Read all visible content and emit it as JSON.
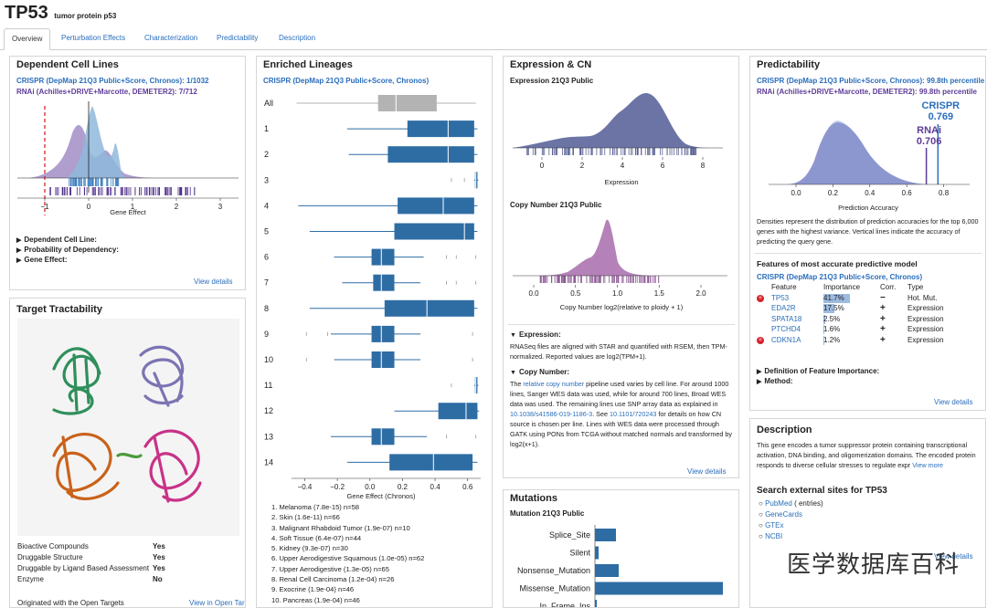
{
  "header": {
    "gene": "TP53",
    "description": "tumor protein p53"
  },
  "tabs": [
    "Overview",
    "Perturbation Effects",
    "Characterization",
    "Predictability",
    "Description"
  ],
  "dependent": {
    "title": "Dependent Cell Lines",
    "crispr": "CRISPR (DepMap 21Q3 Public+Score, Chronos): 1/1032",
    "rnai": "RNAi (Achilles+DRIVE+Marcotte, DEMETER2): 7/712",
    "chart_data": {
      "type": "area",
      "xlabel": "Gene Effect",
      "xticks": [
        "−1",
        "0",
        "1",
        "2",
        "3"
      ],
      "xtick_values": [
        -1,
        0,
        1,
        2,
        3
      ],
      "threshold": -1,
      "series": [
        {
          "name": "CRISPR",
          "color": "#8fb8dc"
        },
        {
          "name": "RNAi",
          "color": "#9b86c2"
        }
      ]
    },
    "details": [
      "Dependent Cell Line:",
      "Probability of Dependency:",
      "Gene Effect:"
    ],
    "view": "View details"
  },
  "tractability": {
    "title": "Target Tractability",
    "rows": [
      {
        "label": "Bioactive Compounds",
        "value": "Yes"
      },
      {
        "label": "Druggable Structure",
        "value": "Yes"
      },
      {
        "label": "Druggable by Ligand Based Assessment",
        "value": "Yes"
      },
      {
        "label": "Enzyme",
        "value": "No"
      }
    ],
    "footer": "Originated with the Open Targets",
    "footer_link": "View in Open Targets"
  },
  "lineages": {
    "title": "Enriched Lineages",
    "subtitle": "CRISPR (DepMap 21Q3 Public+Score, Chronos)",
    "chart_data": {
      "type": "box",
      "xlabel": "Gene Effect (Chronos)",
      "xticks": [
        "−0.4",
        "−0.2",
        "0.0",
        "0.2",
        "0.4",
        "0.6"
      ],
      "xtick_values": [
        -0.4,
        -0.2,
        0.0,
        0.2,
        0.4,
        0.6
      ],
      "xlim": [
        -0.47,
        0.68
      ],
      "categories": [
        "All",
        "1",
        "2",
        "3",
        "4",
        "5",
        "6",
        "7",
        "8",
        "9",
        "10",
        "11",
        "12",
        "13",
        "14"
      ],
      "boxes": [
        {
          "min": -0.45,
          "q1": 0.05,
          "median": 0.16,
          "q3": 0.41,
          "max": 0.65
        },
        {
          "min": -0.14,
          "q1": 0.23,
          "median": 0.48,
          "q3": 0.64,
          "max": 0.66
        },
        {
          "min": -0.13,
          "q1": 0.11,
          "median": 0.48,
          "q3": 0.64,
          "max": 0.66
        },
        {
          "min": 0.64,
          "q1": 0.645,
          "median": 0.65,
          "q3": 0.66,
          "max": 0.665,
          "outliers": [
            0.5,
            0.58
          ]
        },
        {
          "min": -0.44,
          "q1": 0.17,
          "median": 0.45,
          "q3": 0.64,
          "max": 0.66
        },
        {
          "min": -0.37,
          "q1": 0.15,
          "median": 0.58,
          "q3": 0.64,
          "max": 0.66
        },
        {
          "min": -0.22,
          "q1": 0.01,
          "median": 0.07,
          "q3": 0.15,
          "max": 0.33,
          "outliers": [
            0.47,
            0.53,
            0.65
          ]
        },
        {
          "min": -0.17,
          "q1": 0.02,
          "median": 0.07,
          "q3": 0.15,
          "max": 0.31,
          "outliers": [
            0.47,
            0.53,
            0.65
          ]
        },
        {
          "min": -0.37,
          "q1": 0.09,
          "median": 0.35,
          "q3": 0.64,
          "max": 0.66
        },
        {
          "min": -0.24,
          "q1": 0.01,
          "median": 0.07,
          "q3": 0.15,
          "max": 0.31,
          "outliers": [
            -0.39,
            -0.26,
            0.63
          ]
        },
        {
          "min": -0.22,
          "q1": 0.01,
          "median": 0.07,
          "q3": 0.15,
          "max": 0.31,
          "outliers": [
            -0.39,
            0.63
          ]
        },
        {
          "min": 0.64,
          "q1": 0.645,
          "median": 0.65,
          "q3": 0.66,
          "max": 0.665,
          "outliers": [
            0.5
          ]
        },
        {
          "min": 0.15,
          "q1": 0.42,
          "median": 0.59,
          "q3": 0.66,
          "max": 0.67
        },
        {
          "min": -0.24,
          "q1": 0.01,
          "median": 0.07,
          "q3": 0.15,
          "max": 0.35,
          "outliers": [
            0.47,
            0.65
          ]
        },
        {
          "min": -0.14,
          "q1": 0.12,
          "median": 0.39,
          "q3": 0.63,
          "max": 0.66
        }
      ]
    },
    "list": [
      "1. Melanoma (7.8e-15) n=58",
      "2. Skin (1.6e-11) n=66",
      "3. Malignant Rhabdoid Tumor (1.9e-07) n=10",
      "4. Soft Tissue (6.4e-07) n=44",
      "5. Kidney (9.3e-07) n=30",
      "6. Upper Aerodigestive Squamous (1.0e-05) n=62",
      "7. Upper Aerodigestive (1.3e-05) n=65",
      "8. Renal Cell Carcinoma (1.2e-04) n=26",
      "9. Exocrine (1.9e-04) n=46",
      "10. Pancreas (1.9e-04) n=46"
    ]
  },
  "expression": {
    "title": "Expression & CN",
    "expr_label": "Expression 21Q3 Public",
    "expr_chart": {
      "type": "area",
      "xlabel": "Expression",
      "xticks": [
        "0",
        "2",
        "4",
        "6",
        "8"
      ],
      "xtick_values": [
        0,
        2,
        4,
        6,
        8
      ],
      "color": "#6b74a4"
    },
    "cn_label": "Copy Number 21Q3 Public",
    "cn_chart": {
      "type": "area",
      "xlabel": "Copy Number log2(relative to ploidy + 1)",
      "xticks": [
        "0.0",
        "0.5",
        "1.0",
        "1.5",
        "2.0"
      ],
      "xtick_values": [
        0.0,
        0.5,
        1.0,
        1.5,
        2.0
      ],
      "color": "#b482b8"
    },
    "expr_note_title": "Expression:",
    "expr_note": "RNASeq files are aligned with STAR and quantified with RSEM, then TPM-normalized. Reported values are log2(TPM+1).",
    "cn_note_title": "Copy Number:",
    "cn_note_1": "The ",
    "cn_note_link1": "relative copy number",
    "cn_note_2": " pipeline used varies by cell line. For around 1000 lines, Sanger WES data was used, while for around 700 lines, Broad WES data was used. The remaining lines use SNP array data as explained in ",
    "cn_note_link2": "10.1038/s41586-019-1186-3",
    "cn_note_3": ". See ",
    "cn_note_link3": "10.1101/720243",
    "cn_note_4": " for details on how CN source is chosen per line. Lines with WES data were processed through GATK using PONs from TCGA without matched normals and transformed by log2(x+1).",
    "view": "View details"
  },
  "mutations": {
    "title": "Mutations",
    "subtitle": "Mutation 21Q3 Public",
    "chart_data": {
      "type": "bar",
      "categories": [
        "Splice_Site",
        "Silent",
        "Nonsense_Mutation",
        "Missense_Mutation",
        "In_Frame_Ins"
      ],
      "values": [
        23,
        4,
        26,
        140,
        2
      ],
      "color": "#2e6da4"
    }
  },
  "predictability": {
    "title": "Predictability",
    "crispr": "CRISPR (DepMap 21Q3 Public+Score, Chronos): 99.8th percentile",
    "rnai": "RNAi (Achilles+DRIVE+Marcotte, DEMETER2): 99.8th percentile",
    "chart_data": {
      "type": "area",
      "xlabel": "Prediction Accuracy",
      "xticks": [
        "0.0",
        "0.2",
        "0.4",
        "0.6",
        "0.8"
      ],
      "xtick_values": [
        0.0,
        0.2,
        0.4,
        0.6,
        0.8
      ],
      "markers": [
        {
          "name": "CRISPR",
          "value": 0.769,
          "label": "0.769",
          "color": "#2a6ebb"
        },
        {
          "name": "RNAi",
          "value": 0.706,
          "label": "0.706",
          "color": "#5e3c99"
        }
      ]
    },
    "description": "Densities represent the distribution of prediction accuracies for the top 6,000 genes with the highest variance. Vertical lines indicate the accuracy of predicting the query gene.",
    "features_title": "Features of most accurate predictive model",
    "features_subtitle": "CRISPR (DepMap 21Q3 Public+Score, Chronos)",
    "features_headers": [
      "Feature",
      "Importance",
      "Corr.",
      "Type"
    ],
    "features": [
      {
        "name": "TP53",
        "importance": "41.7%",
        "importance_value": 41.7,
        "corr": "−",
        "type": "Hot. Mut.",
        "badge": true
      },
      {
        "name": "EDA2R",
        "importance": "17.5%",
        "importance_value": 17.5,
        "corr": "+",
        "type": "Expression",
        "badge": false
      },
      {
        "name": "SPATA18",
        "importance": "2.5%",
        "importance_value": 2.5,
        "corr": "+",
        "type": "Expression",
        "badge": false
      },
      {
        "name": "PTCHD4",
        "importance": "1.6%",
        "importance_value": 1.6,
        "corr": "+",
        "type": "Expression",
        "badge": false
      },
      {
        "name": "CDKN1A",
        "importance": "1.2%",
        "importance_value": 1.2,
        "corr": "+",
        "type": "Expression",
        "badge": true
      }
    ],
    "details": [
      "Definition of Feature Importance:",
      "Method:"
    ],
    "view": "View details"
  },
  "description": {
    "title": "Description",
    "text": "This gene encodes a tumor suppressor protein containing transcriptional activation, DNA binding, and oligomerization domains. The encoded protein responds to diverse cellular stresses to regulate expr",
    "more": "View more",
    "external_title": "Search external sites for TP53",
    "external": [
      {
        "label": "PubMed",
        "suffix": " ( entries)"
      },
      {
        "label": "GeneCards",
        "suffix": ""
      },
      {
        "label": "GTEx",
        "suffix": ""
      },
      {
        "label": "NCBI",
        "suffix": ""
      }
    ],
    "view": "View details"
  },
  "watermark": "医学数据库百科"
}
